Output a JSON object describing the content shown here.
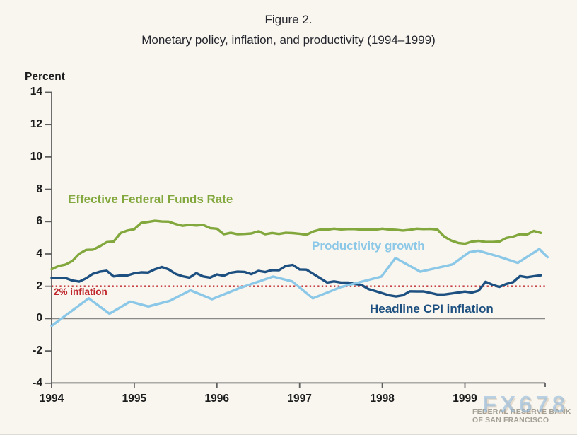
{
  "title": {
    "line1": "Figure 2.",
    "line2": "Monetary policy, inflation, and productivity (1994–1999)"
  },
  "axis_unit_label": "Percent",
  "annotations": {
    "ffr_label": "Effective Federal Funds Rate",
    "productivity_label": "Productivity growth",
    "cpi_label": "Headline CPI inflation",
    "target_label": "2% inflation"
  },
  "watermark": {
    "fx_text": "FX678",
    "bank_line1": "FEDERAL RESERVE BANK",
    "bank_line2": "OF SAN FRANCISCO"
  },
  "colors": {
    "background": "#f8f6ef",
    "axis": "#5f5f5f",
    "zero_line": "#8a8a8a",
    "green": "#82a73c",
    "dark_blue": "#1d5080",
    "light_blue": "#8bc7e7",
    "red": "#c0272d",
    "text": "#26262e"
  },
  "chart_data": {
    "type": "line",
    "title": "Figure 2. Monetary policy, inflation, and productivity (1994–1999)",
    "ylabel": "Percent",
    "ylim": [
      -4,
      14
    ],
    "xlim": [
      1994,
      2000
    ],
    "y_ticks": [
      14,
      12,
      10,
      8,
      6,
      4,
      2,
      0,
      -2,
      -4
    ],
    "x_ticks": [
      1994,
      1995,
      1996,
      1997,
      1998,
      1999
    ],
    "grid": false,
    "legend_position": "inline-labels",
    "reference_line": {
      "label": "2% inflation",
      "value": 2,
      "style": "dotted",
      "color": "#c0272d"
    },
    "series": [
      {
        "name": "Effective Federal Funds Rate",
        "color": "#82a73c",
        "frequency": "monthly",
        "start": 1994.0,
        "values": [
          3.05,
          3.25,
          3.34,
          3.56,
          4.01,
          4.25,
          4.26,
          4.47,
          4.73,
          4.76,
          5.29,
          5.45,
          5.53,
          5.92,
          5.98,
          6.05,
          6.01,
          6.0,
          5.85,
          5.74,
          5.8,
          5.76,
          5.8,
          5.6,
          5.56,
          5.22,
          5.31,
          5.22,
          5.24,
          5.27,
          5.4,
          5.22,
          5.3,
          5.24,
          5.31,
          5.29,
          5.25,
          5.19,
          5.39,
          5.51,
          5.5,
          5.56,
          5.52,
          5.54,
          5.54,
          5.5,
          5.52,
          5.5,
          5.56,
          5.51,
          5.49,
          5.45,
          5.49,
          5.56,
          5.54,
          5.55,
          5.51,
          5.07,
          4.83,
          4.68,
          4.63,
          4.76,
          4.81,
          4.74,
          4.74,
          4.76,
          4.99,
          5.07,
          5.22,
          5.2,
          5.42,
          5.3
        ]
      },
      {
        "name": "Headline CPI inflation",
        "color": "#1d5080",
        "frequency": "monthly",
        "start": 1994.0,
        "values": [
          2.52,
          2.52,
          2.51,
          2.36,
          2.29,
          2.49,
          2.77,
          2.9,
          2.96,
          2.61,
          2.67,
          2.67,
          2.8,
          2.86,
          2.85,
          3.05,
          3.19,
          3.04,
          2.76,
          2.62,
          2.54,
          2.81,
          2.61,
          2.54,
          2.73,
          2.65,
          2.84,
          2.9,
          2.89,
          2.75,
          2.95,
          2.88,
          3.0,
          2.99,
          3.26,
          3.32,
          3.04,
          3.03,
          2.76,
          2.5,
          2.23,
          2.3,
          2.23,
          2.23,
          2.15,
          2.08,
          1.83,
          1.7,
          1.57,
          1.44,
          1.37,
          1.44,
          1.69,
          1.68,
          1.68,
          1.59,
          1.49,
          1.49,
          1.55,
          1.61,
          1.67,
          1.61,
          1.73,
          2.28,
          2.09,
          1.96,
          2.14,
          2.26,
          2.63,
          2.56,
          2.62,
          2.68
        ]
      },
      {
        "name": "Productivity growth",
        "color": "#8bc7e7",
        "frequency": "irregular",
        "points": [
          [
            1994.0,
            -0.45
          ],
          [
            1994.25,
            0.5
          ],
          [
            1994.45,
            1.25
          ],
          [
            1994.7,
            0.3
          ],
          [
            1994.95,
            1.05
          ],
          [
            1995.17,
            0.75
          ],
          [
            1995.43,
            1.1
          ],
          [
            1995.68,
            1.75
          ],
          [
            1995.94,
            1.2
          ],
          [
            1996.28,
            1.9
          ],
          [
            1996.68,
            2.6
          ],
          [
            1996.91,
            2.3
          ],
          [
            1997.16,
            1.25
          ],
          [
            1997.5,
            1.95
          ],
          [
            1997.99,
            2.6
          ],
          [
            1998.16,
            3.75
          ],
          [
            1998.46,
            2.9
          ],
          [
            1998.85,
            3.35
          ],
          [
            1999.05,
            4.1
          ],
          [
            1999.16,
            4.2
          ],
          [
            1999.4,
            3.85
          ],
          [
            1999.64,
            3.45
          ],
          [
            1999.9,
            4.3
          ],
          [
            2000.0,
            3.8
          ]
        ]
      }
    ]
  }
}
